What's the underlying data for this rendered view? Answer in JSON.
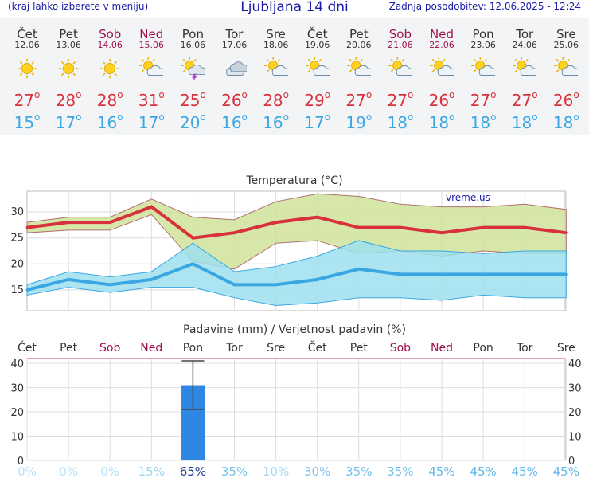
{
  "header": {
    "left": "(kraj lahko izberete v meniju)",
    "title": "Ljubljana 14 dni",
    "right": "Zadnja posodobitev: 12.06.2025 - 12:24"
  },
  "days": [
    {
      "name": "Čet",
      "date": "12.06",
      "weekend": false,
      "icon": "sun-icon",
      "tmax": "27",
      "tmin": "15"
    },
    {
      "name": "Pet",
      "date": "13.06",
      "weekend": false,
      "icon": "sun-icon",
      "tmax": "28",
      "tmin": "17"
    },
    {
      "name": "Sob",
      "date": "14.06",
      "weekend": true,
      "icon": "sun-icon",
      "tmax": "28",
      "tmin": "16"
    },
    {
      "name": "Ned",
      "date": "15.06",
      "weekend": true,
      "icon": "sun-cloud-icon",
      "tmax": "31",
      "tmin": "17"
    },
    {
      "name": "Pon",
      "date": "16.06",
      "weekend": false,
      "icon": "sun-thunder-icon",
      "tmax": "25",
      "tmin": "20"
    },
    {
      "name": "Tor",
      "date": "17.06",
      "weekend": false,
      "icon": "cloudy-icon",
      "tmax": "26",
      "tmin": "16"
    },
    {
      "name": "Sre",
      "date": "18.06",
      "weekend": false,
      "icon": "sun-cloud-icon",
      "tmax": "28",
      "tmin": "16"
    },
    {
      "name": "Čet",
      "date": "19.06",
      "weekend": false,
      "icon": "sun-cloud-icon",
      "tmax": "29",
      "tmin": "17"
    },
    {
      "name": "Pet",
      "date": "20.06",
      "weekend": false,
      "icon": "sun-cloud-icon",
      "tmax": "27",
      "tmin": "19"
    },
    {
      "name": "Sob",
      "date": "21.06",
      "weekend": true,
      "icon": "sun-cloud-icon",
      "tmax": "27",
      "tmin": "18"
    },
    {
      "name": "Ned",
      "date": "22.06",
      "weekend": true,
      "icon": "sun-cloud-icon",
      "tmax": "26",
      "tmin": "18"
    },
    {
      "name": "Pon",
      "date": "23.06",
      "weekend": false,
      "icon": "sun-cloud-icon",
      "tmax": "27",
      "tmin": "18"
    },
    {
      "name": "Tor",
      "date": "24.06",
      "weekend": false,
      "icon": "sun-cloud-icon",
      "tmax": "27",
      "tmin": "18"
    },
    {
      "name": "Sre",
      "date": "25.06",
      "weekend": false,
      "icon": "sun-cloud-icon",
      "tmax": "26",
      "tmin": "18"
    }
  ],
  "degree_symbol": "o",
  "colors": {
    "max": "#d8313b",
    "min": "#3aa7e3",
    "weekend": "#a0104f",
    "max_band": "#cfe39a",
    "min_band": "#9ee0ee",
    "precip": "#2f86e3"
  },
  "chart_data": [
    {
      "type": "line",
      "title": "Temperatura (°C)",
      "watermark": "vreme.us",
      "ylim": [
        11,
        34
      ],
      "yticks": [
        15,
        20,
        25,
        30
      ],
      "grid": true,
      "series": [
        {
          "values": [
            27,
            28,
            28,
            31,
            25,
            26,
            28,
            29,
            27,
            27,
            26,
            27,
            27,
            26
          ]
        },
        {
          "values": [
            15,
            17,
            16,
            17,
            20,
            16,
            16,
            17,
            19,
            18,
            18,
            18,
            18,
            18
          ]
        }
      ],
      "max_band": {
        "low": [
          26,
          26.5,
          26.5,
          29.5,
          20.5,
          19,
          24,
          24.5,
          22,
          22.5,
          21.5,
          22.5,
          22,
          22
        ],
        "high": [
          28,
          29,
          29,
          32.5,
          29,
          28.5,
          32,
          33.5,
          33,
          31.5,
          31,
          31,
          31.5,
          30.5
        ]
      },
      "min_band": {
        "low": [
          14,
          15.5,
          14.5,
          15.5,
          15.5,
          13.5,
          12,
          12.5,
          13.5,
          13.5,
          13,
          14,
          13.5,
          13.5
        ],
        "high": [
          16,
          18.5,
          17.5,
          18.5,
          24,
          18.5,
          19.5,
          21.5,
          24.5,
          22.5,
          22.5,
          22,
          22.5,
          22.5
        ]
      }
    },
    {
      "type": "bar",
      "title": "Padavine (mm) / Verjetnost padavin (%)",
      "ylim": [
        0,
        42
      ],
      "yticks": [
        0,
        10,
        20,
        30,
        40
      ],
      "values": [
        0,
        0,
        0,
        0,
        31,
        0,
        0,
        0,
        0,
        0,
        0,
        0,
        0,
        0
      ],
      "error_low": 21,
      "error_high": 41,
      "probability": [
        "0%",
        "0%",
        "0%",
        "15%",
        "65%",
        "35%",
        "10%",
        "30%",
        "35%",
        "35%",
        "45%",
        "45%",
        "45%",
        "45%"
      ]
    }
  ]
}
